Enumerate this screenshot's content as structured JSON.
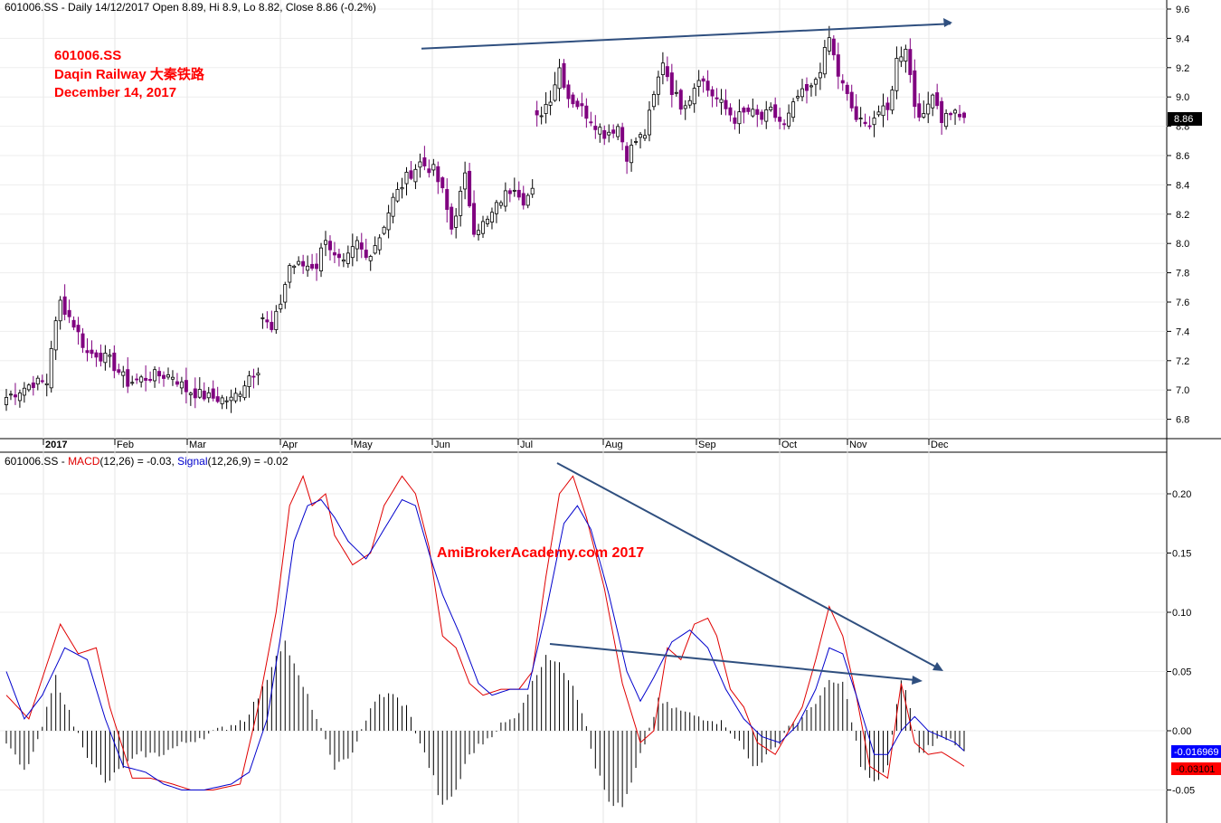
{
  "price_panel": {
    "header": "601006.SS - Daily 14/12/2017 Open 8.89, Hi 8.9, Lo 8.82, Close 8.86 (-0.2%)",
    "title_lines": [
      "601006.SS",
      "Daqin Railway 大秦铁路",
      "December 14, 2017"
    ],
    "last_price_label": "8.86",
    "y_ticks": [
      "9.6",
      "9.4",
      "9.2",
      "9.0",
      "8.8",
      "8.6",
      "8.4",
      "8.2",
      "8.0",
      "7.8",
      "7.6",
      "7.4",
      "7.2",
      "7.0",
      "6.8"
    ],
    "x_labels": [
      "2017",
      "Feb",
      "Mar",
      "Apr",
      "May",
      "Jun",
      "Jul",
      "Aug",
      "Sep",
      "Oct",
      "Nov",
      "Dec"
    ],
    "colors": {
      "up": "#000000",
      "down": "#800080",
      "trendline": "#2f4f7f"
    }
  },
  "macd_panel": {
    "header_prefix": "601006.SS - ",
    "macd_label": "MACD",
    "macd_params": "(12,26)",
    "macd_value": " = -0.03, ",
    "signal_label": "Signal",
    "signal_params": "(12,26,9)",
    "signal_value": " = -0.02",
    "watermark": "AmiBrokerAcademy.com 2017",
    "y_ticks": [
      "0.20",
      "0.15",
      "0.10",
      "0.05",
      "0.00",
      "-0.05"
    ],
    "signal_badge": "-0.016969",
    "macd_badge": "-0.03101",
    "colors": {
      "macd": "#e00000",
      "signal": "#0000cc",
      "histogram": "#000000",
      "signal_badge_bg": "#0000ff",
      "macd_badge_bg": "#ff0000"
    }
  },
  "chart_data": [
    {
      "type": "candlestick",
      "title": "601006.SS Daqin Railway 大秦铁路 December 14, 2017",
      "xlabel": "",
      "ylabel": "",
      "ylim": [
        6.7,
        9.65
      ],
      "x_months": [
        "2017",
        "Feb",
        "Mar",
        "Apr",
        "May",
        "Jun",
        "Jul",
        "Aug",
        "Sep",
        "Oct",
        "Nov",
        "Dec"
      ],
      "last": {
        "date": "14/12/2017",
        "open": 8.89,
        "high": 8.9,
        "low": 8.82,
        "close": 8.86,
        "change_pct": -0.2
      },
      "close_anchors": [
        [
          0,
          6.95
        ],
        [
          3,
          7.0
        ],
        [
          6,
          7.05
        ],
        [
          9,
          7.05
        ],
        [
          10,
          7.3
        ],
        [
          12,
          7.6
        ],
        [
          15,
          7.45
        ],
        [
          18,
          7.25
        ],
        [
          20,
          7.25
        ],
        [
          23,
          7.2
        ],
        [
          27,
          7.05
        ],
        [
          33,
          7.1
        ],
        [
          37,
          7.1
        ],
        [
          40,
          7.0
        ],
        [
          45,
          6.95
        ],
        [
          50,
          6.93
        ],
        [
          52,
          7.0
        ],
        [
          54,
          7.1
        ],
        [
          56,
          7.15
        ],
        [
          57,
          7.5
        ],
        [
          59,
          7.4
        ],
        [
          61,
          7.6
        ],
        [
          63,
          7.85
        ],
        [
          66,
          7.85
        ],
        [
          69,
          7.85
        ],
        [
          71,
          8.05
        ],
        [
          73,
          7.9
        ],
        [
          75,
          7.85
        ],
        [
          78,
          8.0
        ],
        [
          80,
          7.9
        ],
        [
          83,
          8.05
        ],
        [
          86,
          8.3
        ],
        [
          89,
          8.45
        ],
        [
          92,
          8.55
        ],
        [
          95,
          8.5
        ],
        [
          97,
          8.35
        ],
        [
          99,
          8.1
        ],
        [
          102,
          8.45
        ],
        [
          104,
          8.1
        ],
        [
          107,
          8.15
        ],
        [
          110,
          8.3
        ],
        [
          113,
          8.4
        ],
        [
          115,
          8.3
        ],
        [
          117,
          8.35
        ],
        [
          118,
          8.85
        ],
        [
          121,
          9.0
        ],
        [
          123,
          9.2
        ],
        [
          125,
          9.0
        ],
        [
          127,
          8.95
        ],
        [
          130,
          8.85
        ],
        [
          133,
          8.75
        ],
        [
          136,
          8.8
        ],
        [
          138,
          8.6
        ],
        [
          140,
          8.7
        ],
        [
          142,
          8.75
        ],
        [
          144,
          9.0
        ],
        [
          146,
          9.25
        ],
        [
          148,
          9.05
        ],
        [
          150,
          8.95
        ],
        [
          152,
          9.0
        ],
        [
          154,
          9.15
        ],
        [
          156,
          9.05
        ],
        [
          159,
          8.95
        ],
        [
          162,
          8.85
        ],
        [
          165,
          8.9
        ],
        [
          168,
          8.85
        ],
        [
          170,
          8.9
        ],
        [
          173,
          8.8
        ],
        [
          176,
          9.0
        ],
        [
          179,
          9.05
        ],
        [
          181,
          9.2
        ],
        [
          183,
          9.4
        ],
        [
          185,
          9.15
        ],
        [
          187,
          9.0
        ],
        [
          189,
          8.85
        ],
        [
          191,
          8.8
        ],
        [
          194,
          8.9
        ],
        [
          196,
          8.9
        ],
        [
          198,
          9.25
        ],
        [
          200,
          9.35
        ],
        [
          202,
          8.95
        ],
        [
          204,
          8.85
        ],
        [
          206,
          9.05
        ],
        [
          208,
          8.85
        ],
        [
          210,
          8.9
        ],
        [
          212,
          8.88
        ],
        [
          213,
          8.86
        ]
      ],
      "gaps_after_index": [
        56,
        117
      ],
      "trendline": {
        "from": [
          "Jun",
          9.33
        ],
        "to": [
          "Dec",
          9.5
        ]
      }
    },
    {
      "type": "line",
      "title": "MACD(12,26) = -0.03, Signal(12,26,9) = -0.02",
      "xlabel": "",
      "ylabel": "",
      "ylim": [
        -0.075,
        0.235
      ],
      "series": [
        {
          "name": "MACD(12,26)",
          "points": [
            [
              0,
              0.03
            ],
            [
              5,
              0.01
            ],
            [
              12,
              0.09
            ],
            [
              16,
              0.065
            ],
            [
              20,
              0.07
            ],
            [
              23,
              0.02
            ],
            [
              28,
              -0.04
            ],
            [
              32,
              -0.04
            ],
            [
              37,
              -0.045
            ],
            [
              41,
              -0.05
            ],
            [
              46,
              -0.05
            ],
            [
              52,
              -0.045
            ],
            [
              56,
              0.02
            ],
            [
              60,
              0.1
            ],
            [
              63,
              0.19
            ],
            [
              66,
              0.215
            ],
            [
              68,
              0.19
            ],
            [
              71,
              0.2
            ],
            [
              73,
              0.165
            ],
            [
              77,
              0.14
            ],
            [
              81,
              0.15
            ],
            [
              84,
              0.19
            ],
            [
              88,
              0.215
            ],
            [
              91,
              0.2
            ],
            [
              94,
              0.155
            ],
            [
              97,
              0.08
            ],
            [
              100,
              0.07
            ],
            [
              103,
              0.04
            ],
            [
              106,
              0.03
            ],
            [
              110,
              0.035
            ],
            [
              114,
              0.035
            ],
            [
              117,
              0.05
            ],
            [
              120,
              0.13
            ],
            [
              123,
              0.2
            ],
            [
              126,
              0.215
            ],
            [
              129,
              0.18
            ],
            [
              133,
              0.12
            ],
            [
              137,
              0.04
            ],
            [
              141,
              -0.01
            ],
            [
              144,
              0.0
            ],
            [
              147,
              0.07
            ],
            [
              150,
              0.06
            ],
            [
              153,
              0.09
            ],
            [
              156,
              0.095
            ],
            [
              158,
              0.08
            ],
            [
              161,
              0.035
            ],
            [
              164,
              0.02
            ],
            [
              167,
              -0.01
            ],
            [
              171,
              -0.02
            ],
            [
              174,
              0.0
            ],
            [
              177,
              0.02
            ],
            [
              180,
              0.06
            ],
            [
              183,
              0.105
            ],
            [
              186,
              0.08
            ],
            [
              189,
              0.03
            ],
            [
              192,
              -0.03
            ],
            [
              196,
              -0.04
            ],
            [
              199,
              0.04
            ],
            [
              202,
              -0.01
            ],
            [
              205,
              -0.02
            ],
            [
              208,
              -0.018
            ],
            [
              211,
              -0.025
            ],
            [
              213,
              -0.03
            ]
          ]
        },
        {
          "name": "Signal(12,26,9)",
          "points": [
            [
              0,
              0.05
            ],
            [
              4,
              0.01
            ],
            [
              8,
              0.03
            ],
            [
              13,
              0.07
            ],
            [
              18,
              0.06
            ],
            [
              22,
              0.01
            ],
            [
              26,
              -0.03
            ],
            [
              31,
              -0.035
            ],
            [
              35,
              -0.045
            ],
            [
              39,
              -0.05
            ],
            [
              44,
              -0.05
            ],
            [
              50,
              -0.045
            ],
            [
              54,
              -0.035
            ],
            [
              58,
              0.01
            ],
            [
              61,
              0.08
            ],
            [
              64,
              0.16
            ],
            [
              67,
              0.19
            ],
            [
              70,
              0.195
            ],
            [
              73,
              0.18
            ],
            [
              76,
              0.16
            ],
            [
              80,
              0.145
            ],
            [
              84,
              0.17
            ],
            [
              88,
              0.195
            ],
            [
              91,
              0.19
            ],
            [
              94,
              0.15
            ],
            [
              97,
              0.115
            ],
            [
              101,
              0.08
            ],
            [
              105,
              0.04
            ],
            [
              108,
              0.03
            ],
            [
              112,
              0.035
            ],
            [
              116,
              0.035
            ],
            [
              120,
              0.1
            ],
            [
              124,
              0.175
            ],
            [
              127,
              0.19
            ],
            [
              130,
              0.17
            ],
            [
              134,
              0.115
            ],
            [
              138,
              0.05
            ],
            [
              141,
              0.025
            ],
            [
              144,
              0.045
            ],
            [
              148,
              0.075
            ],
            [
              152,
              0.085
            ],
            [
              156,
              0.07
            ],
            [
              160,
              0.035
            ],
            [
              164,
              0.01
            ],
            [
              168,
              -0.005
            ],
            [
              172,
              -0.01
            ],
            [
              176,
              0.005
            ],
            [
              180,
              0.035
            ],
            [
              183,
              0.07
            ],
            [
              186,
              0.065
            ],
            [
              189,
              0.03
            ],
            [
              193,
              -0.02
            ],
            [
              196,
              -0.02
            ],
            [
              199,
              0.0
            ],
            [
              202,
              0.012
            ],
            [
              205,
              0.0
            ],
            [
              208,
              -0.005
            ],
            [
              211,
              -0.01
            ],
            [
              213,
              -0.017
            ]
          ]
        }
      ],
      "histogram_peaks": [
        [
          0,
          -0.01
        ],
        [
          4,
          -0.035
        ],
        [
          7,
          -0.01
        ],
        [
          11,
          0.045
        ],
        [
          15,
          0.005
        ],
        [
          18,
          -0.02
        ],
        [
          22,
          -0.045
        ],
        [
          26,
          -0.03
        ],
        [
          30,
          -0.02
        ],
        [
          34,
          -0.02
        ],
        [
          40,
          -0.01
        ],
        [
          47,
          0.0
        ],
        [
          53,
          0.01
        ],
        [
          57,
          0.035
        ],
        [
          60,
          0.065
        ],
        [
          62,
          0.075
        ],
        [
          65,
          0.045
        ],
        [
          68,
          0.02
        ],
        [
          71,
          -0.01
        ],
        [
          73,
          -0.03
        ],
        [
          76,
          -0.025
        ],
        [
          80,
          0.01
        ],
        [
          83,
          0.03
        ],
        [
          86,
          0.03
        ],
        [
          89,
          0.02
        ],
        [
          92,
          -0.01
        ],
        [
          95,
          -0.04
        ],
        [
          97,
          -0.065
        ],
        [
          100,
          -0.05
        ],
        [
          103,
          -0.02
        ],
        [
          106,
          -0.01
        ],
        [
          110,
          0.005
        ],
        [
          113,
          0.01
        ],
        [
          117,
          0.04
        ],
        [
          120,
          0.065
        ],
        [
          123,
          0.055
        ],
        [
          126,
          0.04
        ],
        [
          129,
          0.005
        ],
        [
          131,
          -0.03
        ],
        [
          134,
          -0.06
        ],
        [
          137,
          -0.065
        ],
        [
          139,
          -0.045
        ],
        [
          142,
          -0.01
        ],
        [
          145,
          0.025
        ],
        [
          148,
          0.02
        ],
        [
          151,
          0.015
        ],
        [
          154,
          0.012
        ],
        [
          157,
          0.01
        ],
        [
          160,
          0.005
        ],
        [
          163,
          -0.01
        ],
        [
          166,
          -0.03
        ],
        [
          168,
          -0.025
        ],
        [
          171,
          -0.015
        ],
        [
          174,
          0.005
        ],
        [
          177,
          0.01
        ],
        [
          180,
          0.025
        ],
        [
          183,
          0.04
        ],
        [
          186,
          0.04
        ],
        [
          188,
          0.01
        ],
        [
          190,
          -0.03
        ],
        [
          193,
          -0.045
        ],
        [
          196,
          -0.03
        ],
        [
          199,
          0.045
        ],
        [
          201,
          0.02
        ],
        [
          203,
          -0.02
        ],
        [
          206,
          -0.01
        ],
        [
          209,
          -0.005
        ],
        [
          211,
          -0.01
        ],
        [
          213,
          -0.015
        ]
      ],
      "trendlines": [
        {
          "from": [
            "Jul",
            0.225
          ],
          "to": [
            "Dec",
            0.05
          ]
        },
        {
          "from": [
            "Jul",
            0.072
          ],
          "to": [
            "Dec",
            0.042
          ]
        }
      ]
    }
  ]
}
